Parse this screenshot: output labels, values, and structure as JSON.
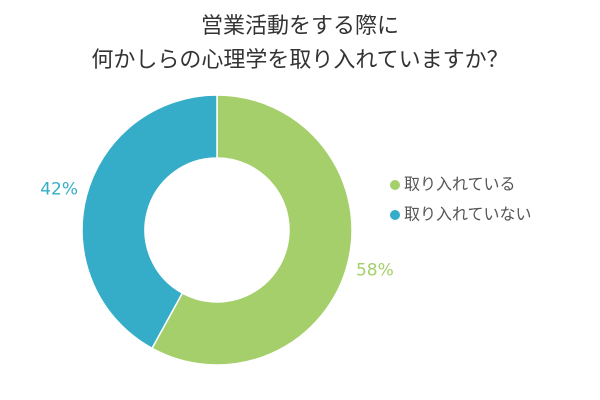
{
  "chart_data": {
    "type": "donut",
    "title": [
      "営業活動をする際に",
      "何かしらの心理学を取り入れていますか？"
    ],
    "categories": [
      "取り入れている",
      "取り入れていない"
    ],
    "values": [
      58,
      42
    ],
    "value_labels": [
      "58%",
      "42%"
    ],
    "colors": [
      "#a5cf6a",
      "#35adc8"
    ],
    "legend": "right"
  }
}
